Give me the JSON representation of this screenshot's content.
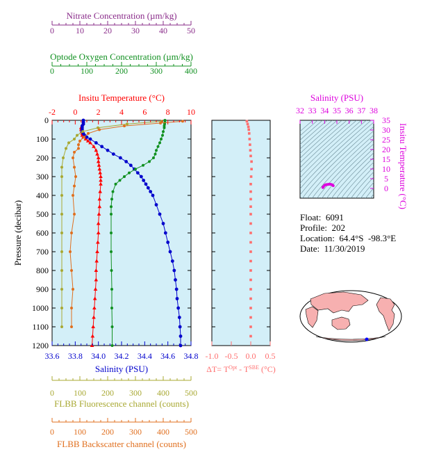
{
  "float_info": {
    "float": "Float:  6091",
    "profile": "Profile:  202",
    "location": "Location:  64.4°S  -98.3°E",
    "date": "Date:  11/30/2019"
  },
  "colors": {
    "panel_bg": "#d3eff8",
    "temperature": "#ff0000",
    "salinity": "#0000cc",
    "oxygen": "#109020",
    "nitrate": "#8a2c8a",
    "fluorescence": "#a8a832",
    "backscatter": "#e06f1e",
    "delta_t": "#ff6e6e",
    "ts_axis": "#dd00dd",
    "map_land": "#f7b0b0",
    "map_ocean": "#ffffff"
  },
  "chart_data": [
    {
      "type": "line",
      "panel": "main",
      "ylabel": "Pressure (decibar)",
      "y_ticks": [
        0,
        100,
        200,
        300,
        400,
        500,
        600,
        700,
        800,
        900,
        1000,
        1100,
        1200
      ],
      "ylim": [
        1200,
        0
      ],
      "grid": false,
      "axes": {
        "temperature": {
          "label": "Insitu Temperature (°C)",
          "range": [
            -2,
            10
          ],
          "ticks": [
            -2,
            0,
            2,
            4,
            6,
            8,
            10
          ],
          "position": "top"
        },
        "oxygen": {
          "label": "Optode Oxygen Concentration (µm/kg)",
          "range": [
            0,
            400
          ],
          "ticks": [
            0,
            100,
            200,
            300,
            400
          ],
          "position": "top"
        },
        "nitrate": {
          "label": "Nitrate Concentration (µm/kg)",
          "range": [
            0,
            50
          ],
          "ticks": [
            0,
            10,
            20,
            30,
            40,
            50
          ],
          "position": "top"
        },
        "salinity": {
          "label": "Salinity (PSU)",
          "range": [
            33.6,
            34.8
          ],
          "ticks": [
            "33.6",
            "33.8",
            "34.0",
            "34.2",
            "34.4",
            "34.6",
            "34.8"
          ],
          "position": "bottom"
        },
        "fluorescence": {
          "label": "FLBB Fluorescence channel (counts)",
          "range": [
            0,
            500
          ],
          "ticks": [
            0,
            100,
            200,
            300,
            400,
            500
          ],
          "position": "bottom"
        },
        "backscatter": {
          "label": "FLBB Backscatter channel (counts)",
          "range": [
            0,
            500
          ],
          "ticks": [
            0,
            100,
            200,
            300,
            400,
            500
          ],
          "position": "bottom"
        }
      },
      "series": [
        {
          "axis": "temperature",
          "p": [
            5,
            15,
            25,
            40,
            50,
            60,
            70,
            80,
            90,
            100,
            110,
            120,
            140,
            160,
            180,
            200,
            220,
            240,
            260,
            280,
            300,
            320,
            340,
            380,
            420,
            460,
            500,
            550,
            600,
            650,
            700,
            750,
            800,
            850,
            900,
            950,
            1000,
            1050,
            1100,
            1150,
            1200
          ],
          "x": [
            0.7,
            0.7,
            0.6,
            0.5,
            0.5,
            0.55,
            0.6,
            0.6,
            0.7,
            0.9,
            1.1,
            1.3,
            1.6,
            1.8,
            1.9,
            2.0,
            2.0,
            2.05,
            2.1,
            2.15,
            2.2,
            2.2,
            2.2,
            2.15,
            2.1,
            2.1,
            2.05,
            2.0,
            2.0,
            1.95,
            1.9,
            1.85,
            1.8,
            1.8,
            1.75,
            1.7,
            1.65,
            1.6,
            1.55,
            1.5,
            1.45
          ]
        },
        {
          "axis": "salinity",
          "p": [
            0,
            10,
            20,
            30,
            40,
            50,
            60,
            70,
            80,
            90,
            100,
            120,
            140,
            160,
            180,
            200,
            220,
            240,
            260,
            280,
            300,
            320,
            340,
            360,
            380,
            400,
            450,
            500,
            550,
            600,
            650,
            700,
            750,
            800,
            850,
            900,
            950,
            1000,
            1050,
            1100,
            1150,
            1200
          ],
          "x": [
            33.87,
            33.87,
            33.87,
            33.86,
            33.86,
            33.86,
            33.86,
            33.87,
            33.88,
            33.9,
            33.93,
            33.98,
            34.03,
            34.08,
            34.13,
            34.19,
            34.24,
            34.28,
            34.31,
            34.34,
            34.37,
            34.39,
            34.41,
            34.43,
            34.45,
            34.47,
            34.5,
            34.53,
            34.56,
            34.58,
            34.6,
            34.62,
            34.64,
            34.655,
            34.665,
            34.675,
            34.68,
            34.69,
            34.7,
            34.705,
            34.71,
            34.71
          ]
        },
        {
          "axis": "oxygen",
          "p": [
            0,
            10,
            20,
            30,
            40,
            60,
            80,
            100,
            120,
            140,
            160,
            180,
            200,
            220,
            240,
            260,
            280,
            300,
            320,
            340,
            380,
            420,
            460,
            500,
            600,
            700,
            800,
            900,
            1000,
            1100,
            1200
          ],
          "x": [
            325,
            325,
            324,
            323,
            323,
            320,
            318,
            314,
            310,
            305,
            300,
            297,
            292,
            280,
            262,
            240,
            222,
            208,
            195,
            183,
            175,
            172,
            170,
            170,
            170,
            170,
            171,
            172,
            172,
            173,
            173
          ]
        },
        {
          "axis": "fluorescence",
          "p": [
            5,
            20,
            40,
            60,
            80,
            100,
            120,
            150,
            200,
            250,
            300,
            400,
            500,
            600,
            700,
            800,
            900,
            1000,
            1100
          ],
          "x": [
            395,
            270,
            165,
            110,
            90,
            80,
            60,
            50,
            40,
            35,
            35,
            35,
            35,
            35,
            35,
            35,
            35,
            35,
            35
          ]
        },
        {
          "axis": "backscatter",
          "p": [
            5,
            15,
            30,
            50,
            70,
            90,
            110,
            130,
            150,
            170,
            200,
            250,
            300,
            350,
            400,
            500,
            600,
            700,
            800,
            900,
            1000,
            1100
          ],
          "x": [
            470,
            390,
            260,
            170,
            130,
            115,
            100,
            95,
            95,
            80,
            75,
            80,
            85,
            80,
            75,
            80,
            70,
            65,
            70,
            75,
            70,
            70
          ]
        }
      ]
    },
    {
      "type": "scatter",
      "panel": "delta_t",
      "xlabel_parts": [
        "ΔT= T",
        "Opt",
        " - T",
        "SBE",
        " (°C)"
      ],
      "xlim": [
        -1.0,
        0.5
      ],
      "x_ticks": [
        "-1.0",
        "-0.5",
        "0.0",
        "0.5"
      ],
      "ylim": [
        1200,
        0
      ],
      "p": [
        5,
        20,
        35,
        50,
        70,
        100,
        130,
        160,
        190,
        220,
        260,
        300,
        340,
        380,
        420,
        460,
        500,
        550,
        600,
        650,
        700,
        750,
        800,
        850,
        900,
        950,
        1000,
        1050,
        1100,
        1150
      ],
      "x": [
        -0.1,
        -0.08,
        -0.06,
        -0.05,
        -0.04,
        -0.03,
        -0.02,
        -0.01,
        0.0,
        0.02,
        0.02,
        0.01,
        0.0,
        0.0,
        0.0,
        0.0,
        0.0,
        0.0,
        0.0,
        0.0,
        0.0,
        0.0,
        0.0,
        0.0,
        0.0,
        0.0,
        0.0,
        0.0,
        0.0,
        0.0
      ]
    },
    {
      "type": "scatter",
      "panel": "ts_diagram",
      "xlabel": "Salinity (PSU)",
      "ylabel": "Insitu Temperature (°C)",
      "xlim": [
        32,
        38
      ],
      "ylim": [
        -5,
        35
      ],
      "x_ticks": [
        32,
        33,
        34,
        35,
        36,
        37,
        38
      ],
      "y_ticks": [
        0,
        5,
        10,
        15,
        20,
        25,
        30,
        35
      ],
      "salinity": [
        33.87,
        33.87,
        33.86,
        33.9,
        34.0,
        34.1,
        34.2,
        34.3,
        34.4,
        34.5,
        34.6,
        34.7
      ],
      "temperature": [
        0.7,
        0.6,
        0.5,
        0.9,
        1.6,
        1.9,
        2.0,
        2.1,
        2.2,
        2.1,
        1.9,
        1.45
      ]
    }
  ]
}
